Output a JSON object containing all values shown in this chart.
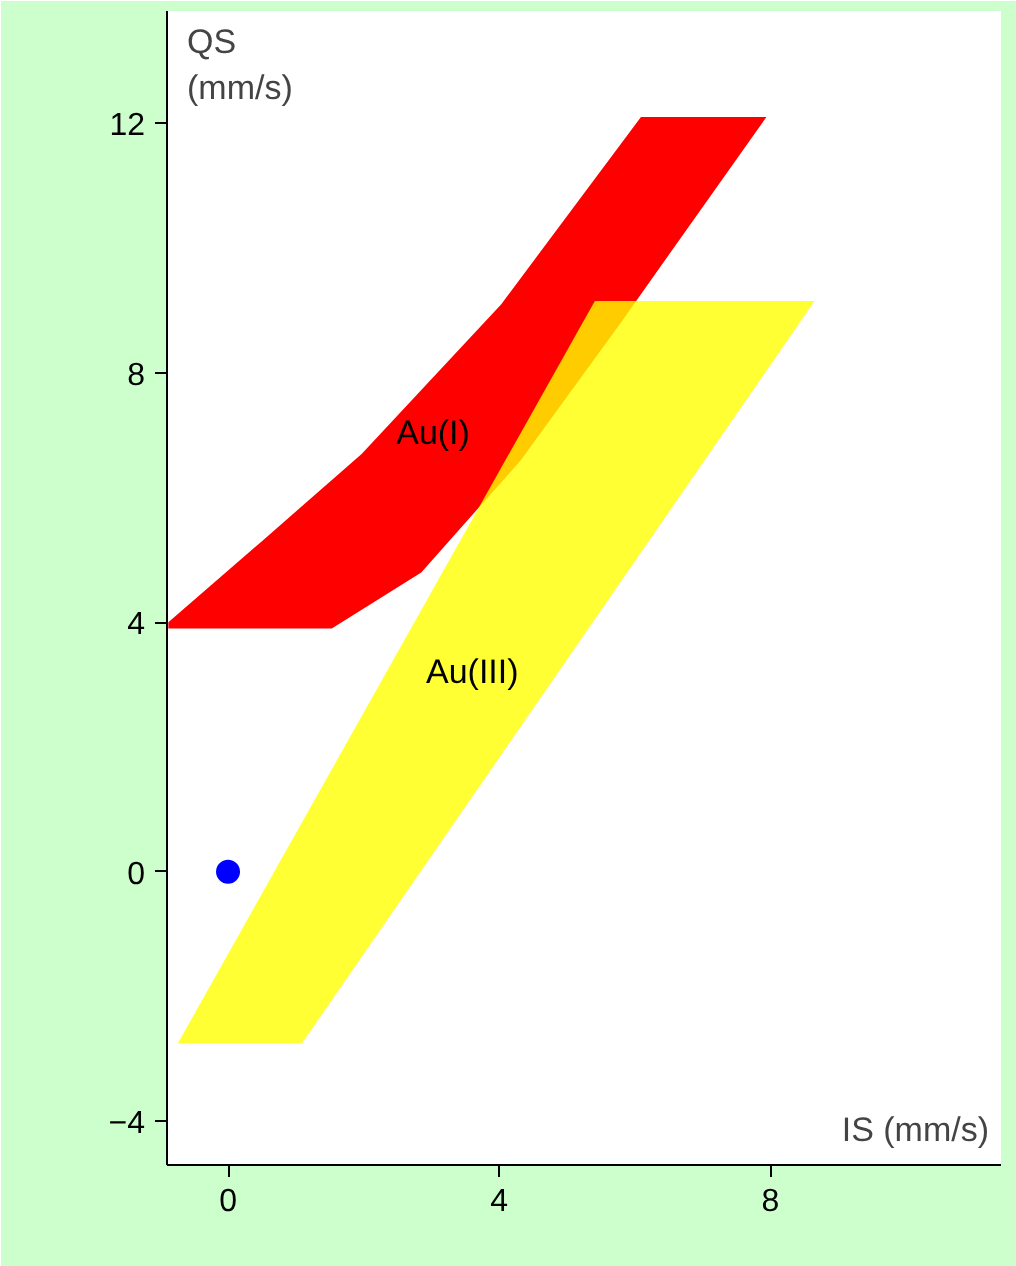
{
  "chart_data": {
    "type": "area",
    "xlabel": "IS (mm/s)",
    "ylabel": "QS\n(mm/s)",
    "xlim": [
      -0.9,
      11.4
    ],
    "ylim": [
      -4.7,
      13.8
    ],
    "xticks": [
      0,
      4,
      8
    ],
    "yticks": [
      -4,
      0,
      4,
      8,
      12
    ],
    "grid": false,
    "series": [
      {
        "name": "Au(I)",
        "color": "#ff0000",
        "x": [
          -0.88,
          1.53,
          2.85,
          4.32,
          5.79,
          7.94,
          6.09,
          4.03,
          1.97,
          0.5,
          -0.88
        ],
        "values": [
          3.9,
          3.9,
          4.8,
          6.6,
          8.8,
          12.1,
          12.1,
          9.1,
          6.7,
          5.3,
          4.0
        ]
      },
      {
        "name": "Au(III)",
        "color": "#ffff00",
        "x": [
          -0.74,
          1.09,
          8.65,
          5.41
        ],
        "values": [
          -2.75,
          -2.75,
          9.15,
          9.15
        ]
      },
      {
        "type": "scatter",
        "marker": "circle",
        "color": "#0000ff",
        "x": [
          0
        ],
        "values": [
          0
        ]
      }
    ]
  }
}
